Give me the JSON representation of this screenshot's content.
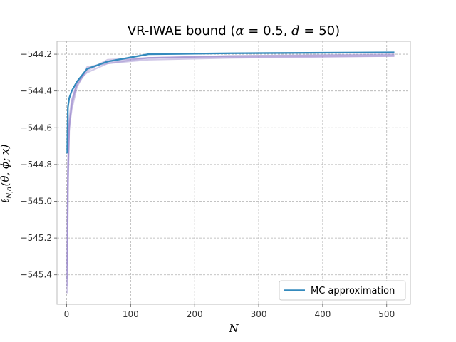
{
  "chart_data": {
    "type": "line",
    "title": "VR-IWAE bound (α = 0.5, d = 50)",
    "xlabel": "N",
    "ylabel": "ℓN,d(θ, ϕ; x)",
    "xlim": [
      -15,
      537
    ],
    "ylim": [
      -545.56,
      -544.13
    ],
    "xticks": [
      0,
      100,
      200,
      300,
      400,
      500
    ],
    "yticks": [
      -545.4,
      -545.2,
      -545.0,
      -544.8,
      -544.6,
      -544.4,
      -544.2
    ],
    "ytick_labels": [
      "−545.4",
      "−545.2",
      "−545.0",
      "−544.8",
      "−544.6",
      "−544.4",
      "−544.2"
    ],
    "xtick_labels": [
      "0",
      "100",
      "200",
      "300",
      "400",
      "500"
    ],
    "grid": true,
    "legend_position": "lower-right",
    "series": [
      {
        "name": "MC approximation",
        "color": "#348ABD",
        "x": [
          1,
          2,
          4,
          8,
          16,
          32,
          64,
          128,
          256,
          512
        ],
        "y": [
          -544.74,
          -544.49,
          -544.44,
          -544.4,
          -544.35,
          -544.28,
          -544.24,
          -544.2,
          -544.195,
          -544.19
        ]
      }
    ],
    "background_series": {
      "color": "#9988CC",
      "runs": [
        {
          "x": [
            1,
            2,
            4,
            8,
            16,
            32,
            64,
            128,
            256,
            512
          ],
          "y": [
            -545.5,
            -544.9,
            -544.58,
            -544.48,
            -544.36,
            -544.28,
            -544.24,
            -544.22,
            -544.21,
            -544.205
          ]
        },
        {
          "x": [
            1,
            2,
            4,
            8,
            16,
            32,
            64,
            128,
            256,
            512
          ],
          "y": [
            -545.46,
            -544.85,
            -544.55,
            -544.45,
            -544.37,
            -544.29,
            -544.23,
            -544.22,
            -544.215,
            -544.21
          ]
        },
        {
          "x": [
            1,
            2,
            4,
            8,
            16,
            32,
            64,
            128,
            256,
            512
          ],
          "y": [
            -545.42,
            -544.8,
            -544.6,
            -544.5,
            -544.38,
            -544.27,
            -544.25,
            -544.23,
            -544.22,
            -544.21
          ]
        },
        {
          "x": [
            1,
            2,
            4,
            8,
            16,
            32,
            64,
            128,
            256,
            512
          ],
          "y": [
            -545.35,
            -544.95,
            -544.62,
            -544.46,
            -544.35,
            -544.3,
            -544.25,
            -544.22,
            -544.21,
            -544.2
          ]
        }
      ]
    }
  }
}
